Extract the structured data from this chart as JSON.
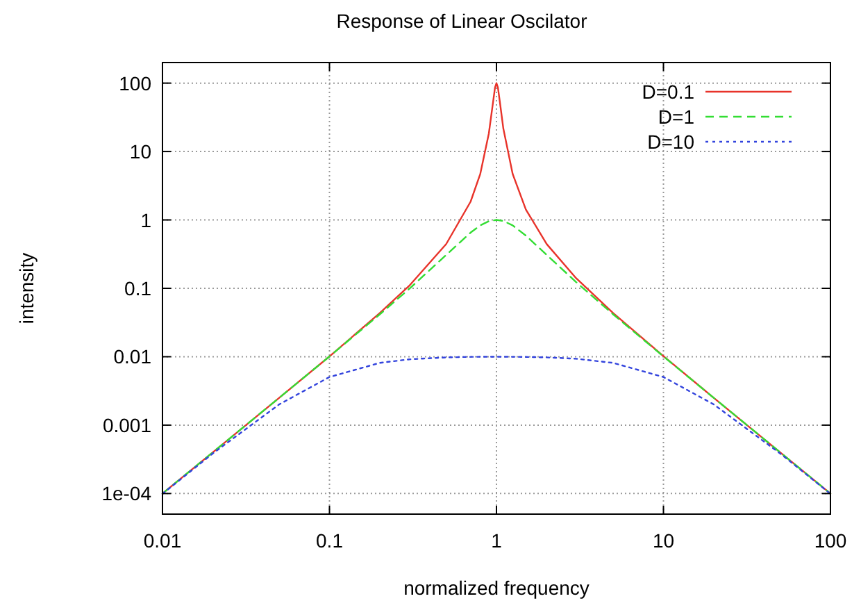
{
  "chart_data": {
    "type": "line",
    "title": "Response of Linear Oscilator",
    "xlabel": "normalized frequency",
    "ylabel": "intensity",
    "log": "xy",
    "grid": true,
    "legend": "top right",
    "marker": "none",
    "xlim": [
      0.01,
      100
    ],
    "xticks": [
      0.01,
      0.1,
      1,
      10,
      100
    ],
    "ylim": [
      5e-05,
      200
    ],
    "yticks": [
      {
        "value": 0.0001,
        "label": "1e-04"
      },
      0.001,
      0.01,
      0.1,
      1,
      10,
      100
    ],
    "series": [
      {
        "name": "D=0.1",
        "color": "#e8332a",
        "line_style": "solid",
        "x": [
          0.01,
          0.02,
          0.05,
          0.1,
          0.2,
          0.3,
          0.5,
          0.7,
          0.8,
          0.9,
          0.95,
          0.98,
          1,
          1.02,
          1.05,
          1.1,
          1.25,
          1.5,
          2,
          3,
          5,
          10,
          20,
          50,
          100
        ],
        "values": [
          0.0001,
          0.0004,
          0.00251,
          0.0101,
          0.0434,
          0.1086,
          0.444,
          1.849,
          4.71,
          18.3,
          48.7,
          86.0,
          100,
          86.4,
          51.2,
          21.5,
          4.71,
          1.42,
          0.4425,
          0.1404,
          0.0434,
          0.0102,
          0.00251,
          0.0004,
          0.0001
        ]
      },
      {
        "name": "D=1",
        "color": "#33dd33",
        "line_style": "dashed",
        "x": [
          0.01,
          0.02,
          0.05,
          0.1,
          0.2,
          0.3,
          0.5,
          0.7,
          0.8,
          0.9,
          1,
          1.1,
          1.25,
          1.5,
          2,
          3,
          5,
          10,
          20,
          50,
          100
        ],
        "values": [
          0.0001,
          0.0004,
          0.00251,
          0.0101,
          0.0416,
          0.098,
          0.3077,
          0.653,
          0.832,
          0.957,
          1,
          0.965,
          0.832,
          0.59,
          0.3077,
          0.1233,
          0.0416,
          0.0101,
          0.002506,
          0.0004,
          0.0001
        ]
      },
      {
        "name": "D=10",
        "color": "#3344dd",
        "line_style": "dotted",
        "x": [
          0.01,
          0.02,
          0.05,
          0.1,
          0.2,
          0.3,
          0.5,
          0.7,
          0.8,
          1,
          1.25,
          1.5,
          2,
          3,
          5,
          10,
          20,
          50,
          100
        ],
        "values": [
          9.9e-05,
          0.000385,
          0.00201,
          0.00505,
          0.00813,
          0.00916,
          0.00978,
          0.00995,
          0.00998,
          0.01,
          0.00997,
          0.00993,
          0.00978,
          0.00934,
          0.00813,
          0.00505,
          0.00201,
          0.000385,
          9.9e-05
        ]
      }
    ]
  }
}
